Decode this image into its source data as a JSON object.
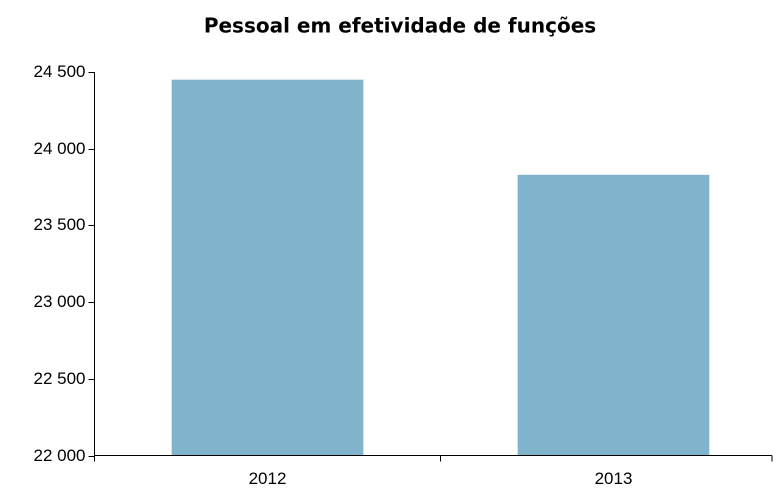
{
  "chart_data": {
    "type": "bar",
    "title": "Pessoal em efetividade de funções",
    "categories": [
      "2012",
      "2013"
    ],
    "values": [
      24450,
      23830
    ],
    "color": "#80b3cc",
    "ylim": [
      22000,
      24500
    ],
    "yticks": [
      {
        "value": 22000,
        "label": "22 000"
      },
      {
        "value": 22500,
        "label": "22 500"
      },
      {
        "value": 23000,
        "label": "23 000"
      },
      {
        "value": 23500,
        "label": "23 500"
      },
      {
        "value": 24000,
        "label": "24 000"
      },
      {
        "value": 24500,
        "label": "24 500"
      }
    ],
    "grid": false
  }
}
